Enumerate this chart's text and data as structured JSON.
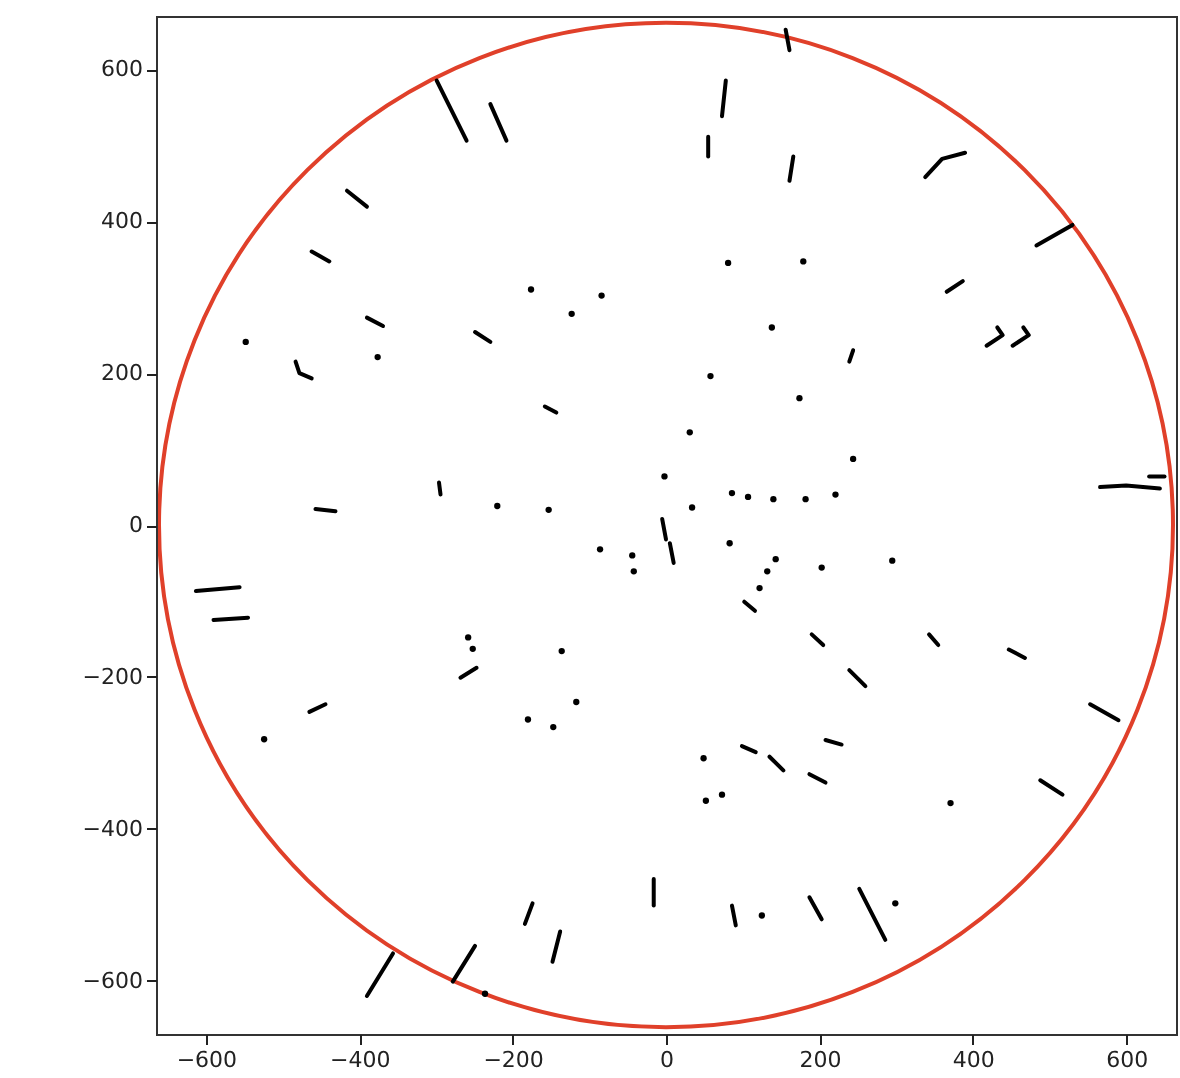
{
  "chart_data": {
    "type": "line",
    "xlim": [
      -665,
      665
    ],
    "ylim": [
      -670,
      670
    ],
    "xticks": [
      -600,
      -400,
      -200,
      0,
      200,
      400,
      600
    ],
    "yticks": [
      -600,
      -400,
      -200,
      0,
      200,
      400,
      600
    ],
    "grid": false,
    "line_style": "solid",
    "series": [
      {
        "type": "scatter",
        "color": "#000000",
        "x": [
          -548,
          -376,
          -176,
          -123,
          -84,
          -220,
          -153,
          81,
          179,
          138,
          174,
          31,
          58,
          244,
          221,
          182,
          140,
          107,
          86,
          34,
          -2,
          -524,
          -252,
          -258,
          -136,
          -180,
          -147,
          -117,
          -236,
          -86,
          -44,
          -42,
          83,
          143,
          132,
          122,
          203,
          371,
          49,
          52,
          73,
          125,
          299,
          295
        ],
        "values": [
          241,
          221,
          310,
          278,
          302,
          25,
          20,
          345,
          347,
          260,
          167,
          122,
          196,
          87,
          40,
          34,
          34,
          37,
          42,
          23,
          64,
          -282,
          -163,
          -148,
          -166,
          -256,
          -266,
          -233,
          -617,
          -32,
          -40,
          -61,
          -24,
          -45,
          -61,
          -83,
          -56,
          -366,
          -307,
          -363,
          -355,
          -514,
          -498,
          -47
        ]
      },
      {
        "color": "#000000",
        "x": [
          -299,
          -260
        ],
        "values": [
          585,
          506
        ]
      },
      {
        "color": "#000000",
        "x": [
          -229,
          -208
        ],
        "values": [
          554,
          506
        ]
      },
      {
        "color": "#000000",
        "x": [
          -416,
          -390
        ],
        "values": [
          440,
          419
        ]
      },
      {
        "color": "#000000",
        "x": [
          -462,
          -439
        ],
        "values": [
          360,
          347
        ]
      },
      {
        "color": "#000000",
        "x": [
          -390,
          -369
        ],
        "values": [
          273,
          262
        ]
      },
      {
        "color": "#000000",
        "x": [
          -483,
          -478,
          -462
        ],
        "values": [
          215,
          200,
          193
        ]
      },
      {
        "color": "#000000",
        "x": [
          -249,
          -229
        ],
        "values": [
          254,
          241
        ]
      },
      {
        "color": "#000000",
        "x": [
          -158,
          -143
        ],
        "values": [
          156,
          148
        ]
      },
      {
        "color": "#000000",
        "x": [
          -457,
          -431
        ],
        "values": [
          21,
          18
        ]
      },
      {
        "color": "#000000",
        "x": [
          -296,
          -294
        ],
        "values": [
          56,
          40
        ]
      },
      {
        "color": "#000000",
        "x": [
          156,
          161
        ],
        "values": [
          652,
          625
        ]
      },
      {
        "color": "#000000",
        "x": [
          78,
          73
        ],
        "values": [
          585,
          538
        ]
      },
      {
        "color": "#000000",
        "x": [
          55,
          55
        ],
        "values": [
          511,
          485
        ]
      },
      {
        "color": "#000000",
        "x": [
          166,
          161
        ],
        "values": [
          485,
          453
        ]
      },
      {
        "color": "#000000",
        "x": [
          338,
          360,
          390
        ],
        "values": [
          458,
          482,
          490
        ]
      },
      {
        "color": "#000000",
        "x": [
          483,
          530
        ],
        "values": [
          368,
          395
        ]
      },
      {
        "color": "#000000",
        "x": [
          366,
          387
        ],
        "values": [
          307,
          321
        ]
      },
      {
        "color": "#000000",
        "x": [
          418,
          439,
          432
        ],
        "values": [
          236,
          250,
          260
        ]
      },
      {
        "color": "#000000",
        "x": [
          452,
          473,
          466
        ],
        "values": [
          236,
          250,
          260
        ]
      },
      {
        "color": "#000000",
        "x": [
          239,
          244
        ],
        "values": [
          215,
          230
        ]
      },
      {
        "color": "#000000",
        "x": [
          566,
          600,
          644
        ],
        "values": [
          50,
          52,
          48
        ]
      },
      {
        "color": "#000000",
        "x": [
          630,
          650
        ],
        "values": [
          64,
          64
        ]
      },
      {
        "color": "#000000",
        "x": [
          -5,
          0
        ],
        "values": [
          8,
          -19
        ]
      },
      {
        "color": "#000000",
        "x": [
          5,
          10
        ],
        "values": [
          -24,
          -50
        ]
      },
      {
        "color": "#000000",
        "x": [
          -613,
          -556
        ],
        "values": [
          -87,
          -82
        ]
      },
      {
        "color": "#000000",
        "x": [
          -590,
          -545
        ],
        "values": [
          -125,
          -122
        ]
      },
      {
        "color": "#000000",
        "x": [
          -465,
          -444
        ],
        "values": [
          -246,
          -236
        ]
      },
      {
        "color": "#000000",
        "x": [
          -268,
          -247
        ],
        "values": [
          -201,
          -188
        ]
      },
      {
        "color": "#000000",
        "x": [
          -390,
          -356
        ],
        "values": [
          -620,
          -564
        ]
      },
      {
        "color": "#000000",
        "x": [
          -278,
          -249
        ],
        "values": [
          -601,
          -554
        ]
      },
      {
        "color": "#000000",
        "x": [
          -184,
          -174
        ],
        "values": [
          -525,
          -498
        ]
      },
      {
        "color": "#000000",
        "x": [
          -148,
          -138
        ],
        "values": [
          -575,
          -535
        ]
      },
      {
        "color": "#000000",
        "x": [
          -16,
          -16
        ],
        "values": [
          -501,
          -466
        ]
      },
      {
        "color": "#000000",
        "x": [
          102,
          116
        ],
        "values": [
          -101,
          -113
        ]
      },
      {
        "color": "#000000",
        "x": [
          190,
          205
        ],
        "values": [
          -144,
          -158
        ]
      },
      {
        "color": "#000000",
        "x": [
          343,
          355
        ],
        "values": [
          -144,
          -158
        ]
      },
      {
        "color": "#000000",
        "x": [
          447,
          468
        ],
        "values": [
          -164,
          -175
        ]
      },
      {
        "color": "#000000",
        "x": [
          239,
          260
        ],
        "values": [
          -191,
          -212
        ]
      },
      {
        "color": "#000000",
        "x": [
          553,
          590
        ],
        "values": [
          -236,
          -257
        ]
      },
      {
        "color": "#000000",
        "x": [
          488,
          517
        ],
        "values": [
          -336,
          -355
        ]
      },
      {
        "color": "#000000",
        "x": [
          99,
          117
        ],
        "values": [
          -291,
          -299
        ]
      },
      {
        "color": "#000000",
        "x": [
          135,
          153
        ],
        "values": [
          -305,
          -323
        ]
      },
      {
        "color": "#000000",
        "x": [
          208,
          229
        ],
        "values": [
          -283,
          -289
        ]
      },
      {
        "color": "#000000",
        "x": [
          187,
          208
        ],
        "values": [
          -328,
          -339
        ]
      },
      {
        "color": "#000000",
        "x": [
          86,
          91
        ],
        "values": [
          -501,
          -527
        ]
      },
      {
        "color": "#000000",
        "x": [
          187,
          203
        ],
        "values": [
          -490,
          -519
        ]
      },
      {
        "color": "#000000",
        "x": [
          252,
          286
        ],
        "values": [
          -479,
          -546
        ]
      }
    ]
  }
}
